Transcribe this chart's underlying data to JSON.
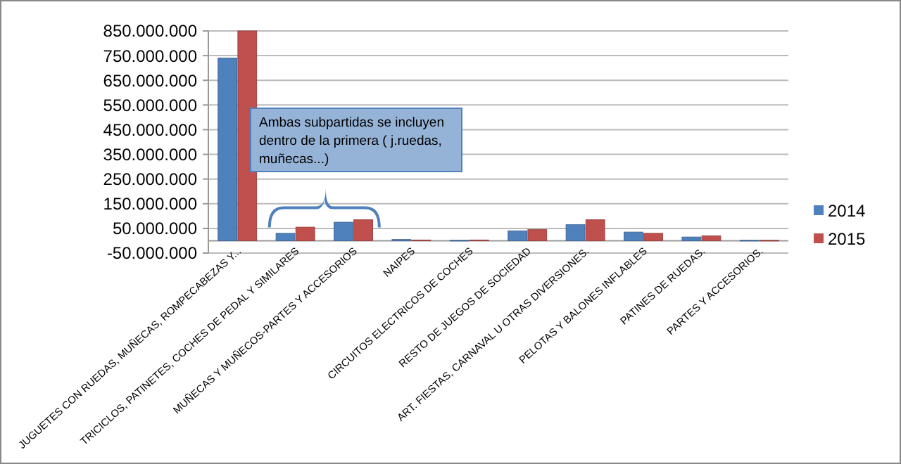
{
  "chart_data": {
    "type": "bar",
    "categories": [
      "JUGUETES CON RUEDAS, MUÑECAS, ROMPECABEZAS Y...",
      "TRICICLOS, PATINETES, COCHES DE PEDAL Y SIMILARES",
      "MUÑECAS Y MUÑECOS-PARTES Y ACCESORIOS",
      "NAIPES",
      "CIRCUITOS ELECTRICOS DE COCHES",
      "RESTO DE JUEGOS DE SOCIEDAD",
      "ART. FIESTAS, CARNAVAL U OTRAS DIVERSIONES.",
      "PELOTAS Y BALONES INFLABLES",
      "PATINES DE RUEDAS.",
      "PARTES Y ACCESORIOS."
    ],
    "series": [
      {
        "name": "2014",
        "color": "#4f81bd",
        "values": [
          740000000,
          30000000,
          75000000,
          5000000,
          2000000,
          40000000,
          65000000,
          35000000,
          15000000,
          2000000
        ]
      },
      {
        "name": "2015",
        "color": "#c0504d",
        "values": [
          850000000,
          55000000,
          85000000,
          3000000,
          3000000,
          45000000,
          85000000,
          30000000,
          20000000,
          2000000
        ]
      }
    ],
    "ylim": [
      -50000000,
      850000000
    ],
    "yticks": [
      {
        "value": -50000000,
        "label": "-50.000.000"
      },
      {
        "value": 50000000,
        "label": "50.000.000"
      },
      {
        "value": 150000000,
        "label": "150.000.000"
      },
      {
        "value": 250000000,
        "label": "250.000.000"
      },
      {
        "value": 350000000,
        "label": "350.000.000"
      },
      {
        "value": 450000000,
        "label": "450.000.000"
      },
      {
        "value": 550000000,
        "label": "550.000.000"
      },
      {
        "value": 650000000,
        "label": "650.000.000"
      },
      {
        "value": 750000000,
        "label": "750.000.000"
      },
      {
        "value": 850000000,
        "label": "850.000.000"
      }
    ],
    "grid": "y",
    "legend": "right",
    "annotations": [
      "Ambas subpartidas se incluyen dentro de  la primera ( j.ruedas, muñecas...)"
    ]
  }
}
